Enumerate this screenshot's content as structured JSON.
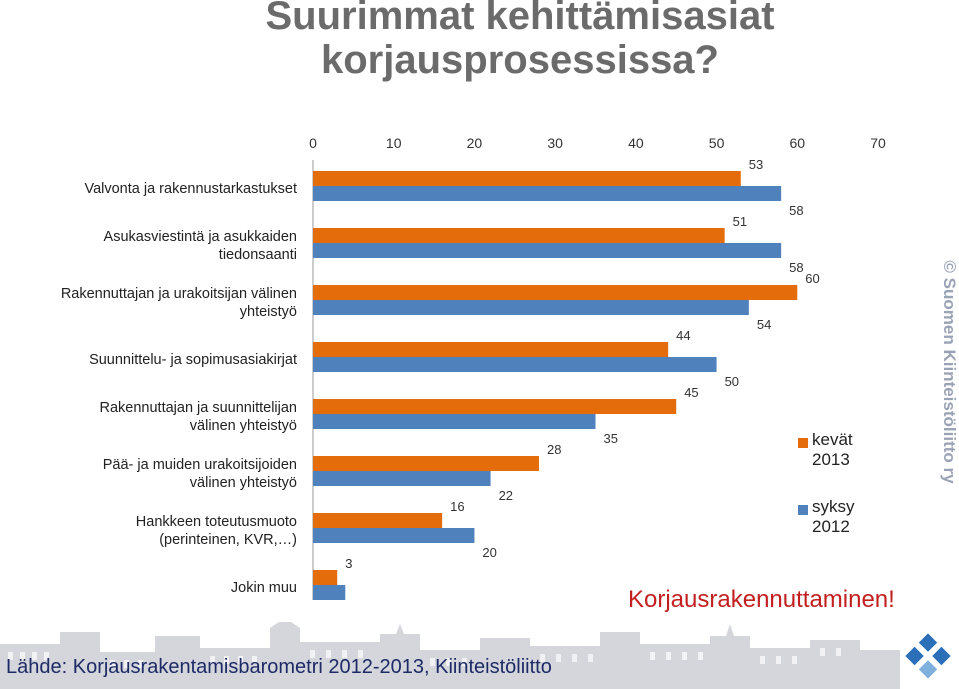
{
  "title": {
    "line1": "Suurimmat kehittämisasiat",
    "line2": "korjausprosessissa?"
  },
  "chart_data": {
    "type": "bar",
    "orientation": "horizontal",
    "xlim": [
      0,
      70
    ],
    "x_ticks": [
      "0",
      "10",
      "20",
      "30",
      "40",
      "50",
      "60",
      "70"
    ],
    "grid": false,
    "legend_position": "right",
    "categories": [
      [
        "Valvonta ja rakennustarkastukset"
      ],
      [
        "Asukasviestintä ja asukkaiden",
        "tiedonsaanti"
      ],
      [
        "Rakennuttajan ja urakoitsijan välinen",
        "yhteistyö"
      ],
      [
        "Suunnittelu- ja sopimusasiakirjat"
      ],
      [
        "Rakennuttajan ja suunnittelijan",
        "välinen yhteistyö"
      ],
      [
        "Pää- ja muiden urakoitsijoiden",
        "välinen yhteistyö"
      ],
      [
        "Hankkeen toteutusmuoto",
        "(perinteinen, KVR,…)"
      ],
      [
        "Jokin muu"
      ]
    ],
    "series": [
      {
        "name": [
          "kevät",
          "2013"
        ],
        "color": "#e46c0a",
        "values": [
          53,
          51,
          60,
          44,
          45,
          28,
          16,
          3
        ]
      },
      {
        "name": [
          "syksy",
          "2012"
        ],
        "color": "#4f81bd",
        "values": [
          58,
          58,
          54,
          50,
          35,
          22,
          20,
          4
        ]
      }
    ]
  },
  "footer": {
    "slogan": "Korjausrakennuttaminen!",
    "source": "Lähde: Korjausrakentamisbarometri 2012-2013, Kiinteistöliitto",
    "watermark": "© Suomen Kiinteistöliitto ry"
  },
  "colors": {
    "title": "#6b6b6b",
    "slogan": "#c31f1f",
    "source": "#1d2a66"
  }
}
